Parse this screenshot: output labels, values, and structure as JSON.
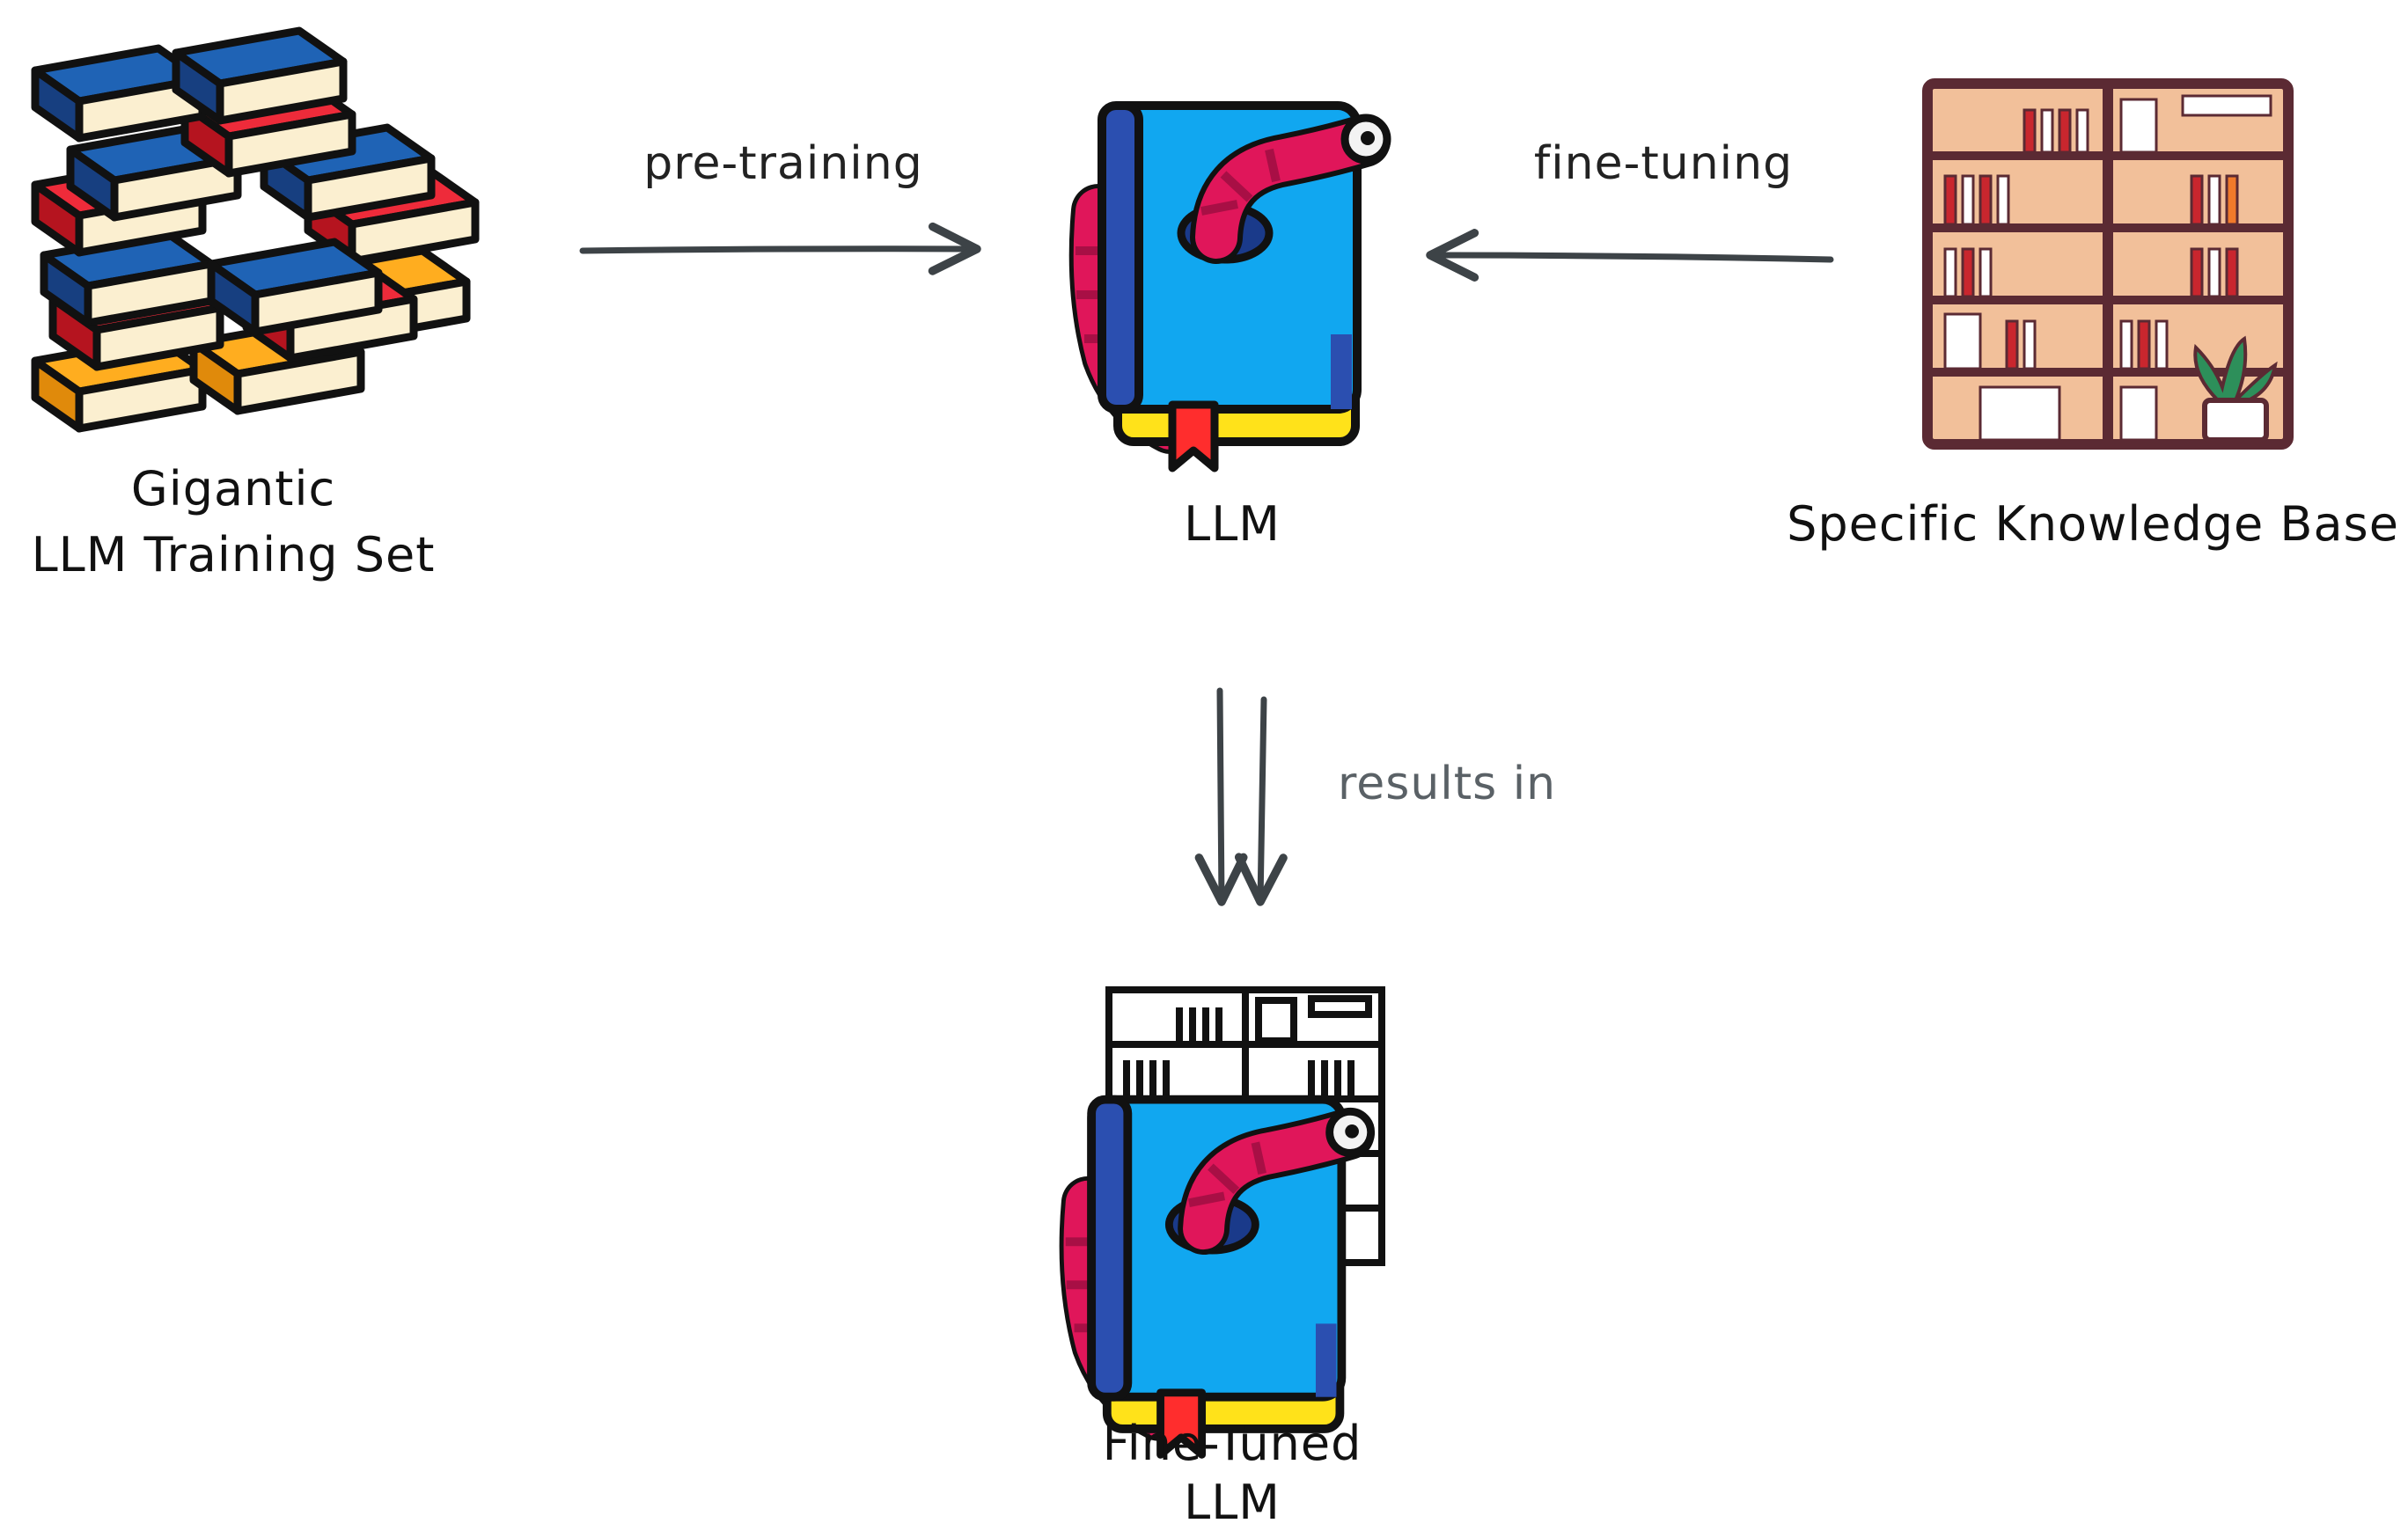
{
  "nodes": {
    "training_set": {
      "line1": "Gigantic",
      "line2": "LLM Training Set"
    },
    "llm": {
      "label": "LLM"
    },
    "knowledge_base": {
      "label": "Specific Knowledge Base"
    },
    "fine_tuned": {
      "line1": "Fine-Tuned",
      "line2": "LLM"
    }
  },
  "edges": {
    "pretraining": {
      "label": "pre-training"
    },
    "finetuning": {
      "label": "fine-tuning"
    },
    "results": {
      "label": "results in"
    }
  },
  "colors": {
    "arrow": "#3d4347",
    "book_blue": "#11a7f0",
    "book_spine": "#2b4fb0",
    "worm": "#e0165a",
    "worm_dark": "#a80f45",
    "bookmark": "#ff2d2d",
    "page_yellow": "#ffe21a",
    "shelf_wood": "#f2c09a",
    "shelf_frame": "#5b2a33",
    "stack_blue": "#1f63b5",
    "stack_red": "#ee2b3a",
    "stack_orange": "#ffad1f",
    "stack_cream": "#fbefd0"
  }
}
